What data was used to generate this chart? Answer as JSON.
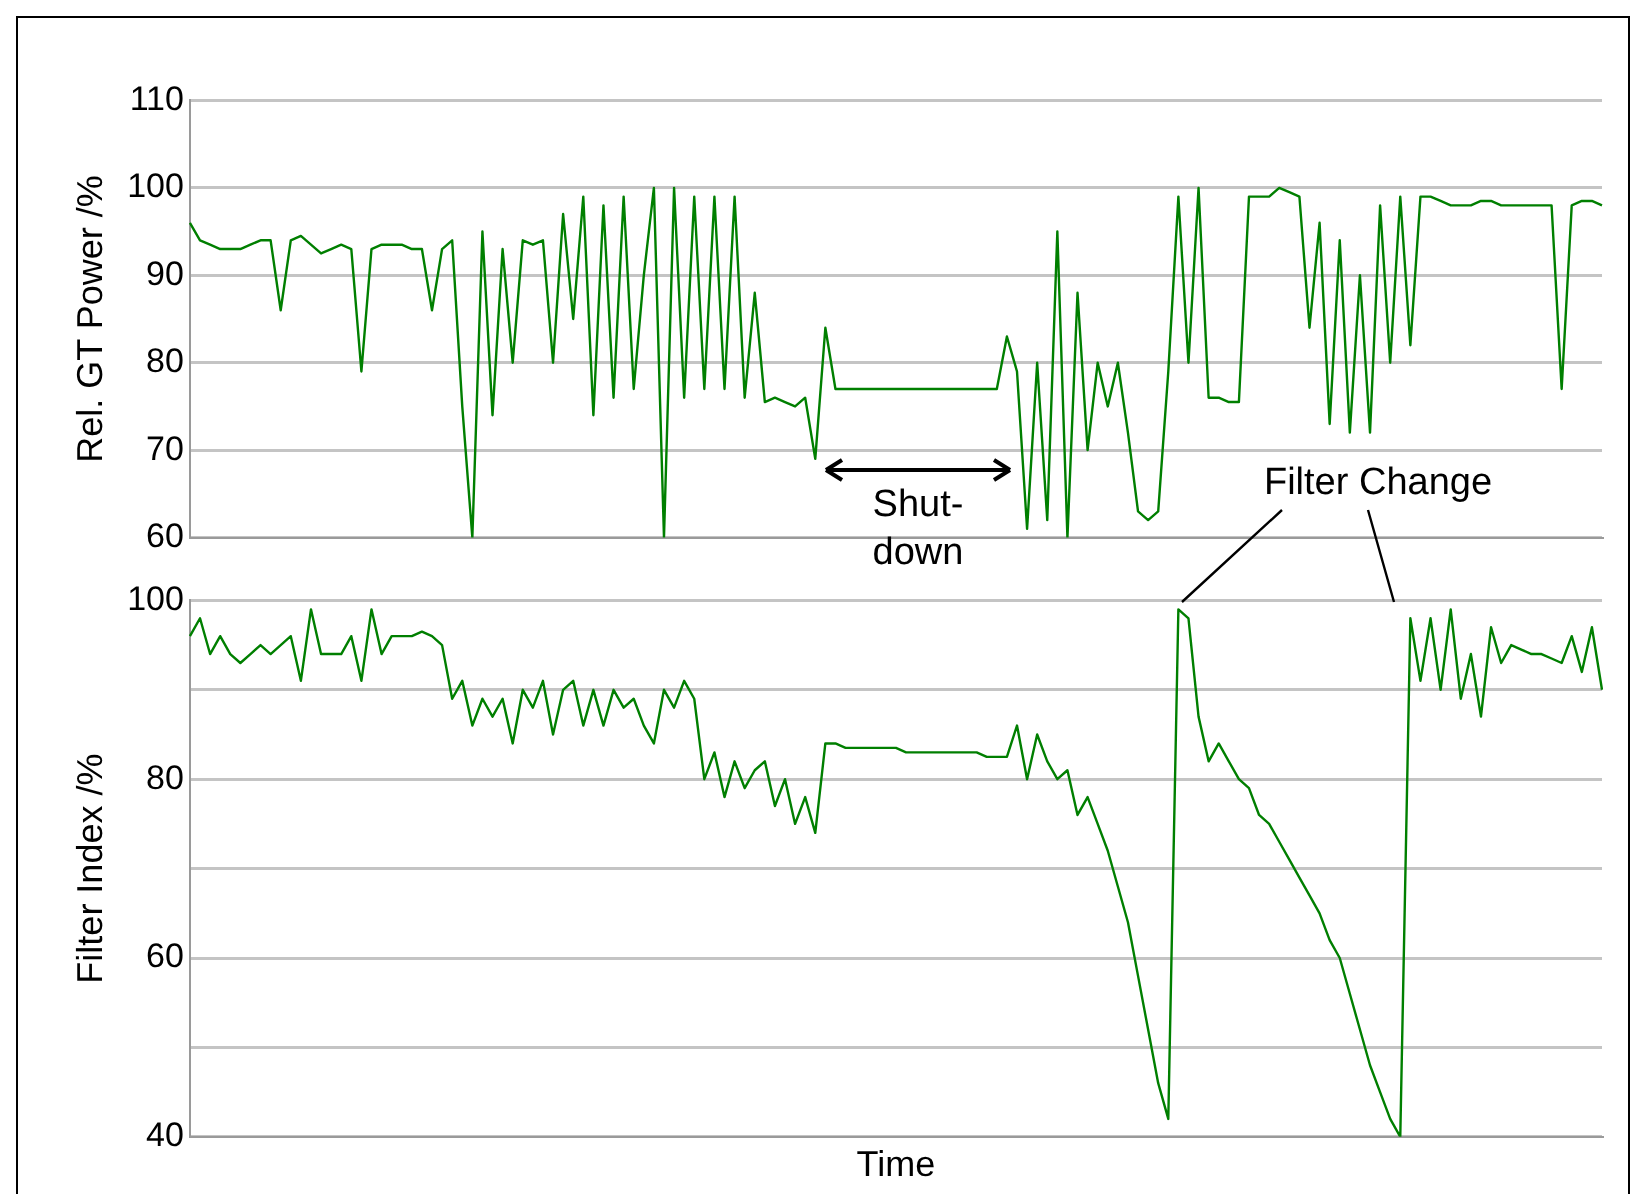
{
  "chart_data": [
    {
      "type": "line",
      "ylabel": "Rel. GT Power /%",
      "categories": [
        null,
        null,
        null,
        null,
        null,
        null,
        null,
        null,
        null,
        null,
        null,
        null,
        null,
        null,
        null,
        null,
        null,
        null,
        null,
        null,
        null,
        null,
        null,
        null,
        null,
        null,
        null,
        null,
        null,
        null,
        null,
        null,
        null,
        null,
        null,
        null,
        null,
        null,
        null,
        null,
        null,
        null,
        null,
        null,
        null,
        null,
        null,
        null,
        null,
        null,
        null,
        null,
        null,
        null,
        null,
        null,
        null,
        null,
        null,
        null,
        null,
        null,
        null,
        null,
        null,
        null,
        null,
        null,
        null,
        null,
        null,
        null,
        null,
        null,
        null,
        null,
        null,
        null,
        null,
        null,
        null,
        null,
        null,
        null,
        null,
        null,
        null,
        null,
        null,
        null,
        null,
        null,
        null,
        null,
        null,
        null,
        null,
        null,
        null,
        null,
        null,
        null,
        null,
        null,
        null,
        null,
        null,
        null,
        null,
        null,
        null,
        null,
        null,
        null,
        null,
        null,
        null,
        null,
        null,
        null,
        null,
        null,
        null,
        null,
        null,
        null,
        null,
        null,
        null,
        null,
        null,
        null,
        null,
        null,
        null,
        null,
        null,
        null,
        null,
        null,
        null
      ],
      "ylim": [
        60,
        110
      ],
      "yticks": [
        60,
        70,
        80,
        90,
        100,
        110
      ],
      "grid": "y",
      "tick_labels": "y",
      "annotations": [
        "Shut-down"
      ],
      "series": [
        {
          "color": "#007f00",
          "values": [
            96,
            94,
            93.5,
            93,
            93,
            93,
            93.5,
            94,
            94,
            86,
            94,
            94.5,
            93.5,
            92.5,
            93,
            93.5,
            93,
            79,
            93,
            93.5,
            93.5,
            93.5,
            93,
            93,
            86,
            93,
            94,
            75,
            60,
            95,
            74,
            93,
            80,
            94,
            93.5,
            94,
            80,
            97,
            85,
            99,
            74,
            98,
            76,
            99,
            77,
            90,
            100,
            60,
            100,
            76,
            99,
            77,
            99,
            77,
            99,
            76,
            88,
            75.5,
            76,
            75.5,
            75,
            76,
            69,
            84,
            77,
            77,
            77,
            77,
            77,
            77,
            77,
            77,
            77,
            77,
            77,
            77,
            77,
            77,
            77,
            77,
            77,
            83,
            79,
            61,
            80,
            62,
            95,
            60,
            88,
            70,
            80,
            75,
            80,
            72,
            63,
            62,
            63,
            79,
            99,
            80,
            100,
            76,
            76,
            75.5,
            75.5,
            99,
            99,
            99,
            100,
            99.5,
            99,
            84,
            96,
            73,
            94,
            72,
            90,
            72,
            98,
            80,
            99,
            82,
            99,
            99,
            98.5,
            98,
            98,
            98,
            98.5,
            98.5,
            98,
            98,
            98,
            98,
            98,
            98,
            77,
            98,
            98.5,
            98.5,
            98
          ]
        }
      ]
    },
    {
      "type": "line",
      "ylabel": "Filter Index /%",
      "xlabel": "Time",
      "categories": [
        null,
        null,
        null,
        null,
        null,
        null,
        null,
        null,
        null,
        null,
        null,
        null,
        null,
        null,
        null,
        null,
        null,
        null,
        null,
        null,
        null,
        null,
        null,
        null,
        null,
        null,
        null,
        null,
        null,
        null,
        null,
        null,
        null,
        null,
        null,
        null,
        null,
        null,
        null,
        null,
        null,
        null,
        null,
        null,
        null,
        null,
        null,
        null,
        null,
        null,
        null,
        null,
        null,
        null,
        null,
        null,
        null,
        null,
        null,
        null,
        null,
        null,
        null,
        null,
        null,
        null,
        null,
        null,
        null,
        null,
        null,
        null,
        null,
        null,
        null,
        null,
        null,
        null,
        null,
        null,
        null,
        null,
        null,
        null,
        null,
        null,
        null,
        null,
        null,
        null,
        null,
        null,
        null,
        null,
        null,
        null,
        null,
        null,
        null,
        null,
        null,
        null,
        null,
        null,
        null,
        null,
        null,
        null,
        null,
        null,
        null,
        null,
        null,
        null,
        null,
        null,
        null,
        null,
        null,
        null,
        null,
        null,
        null,
        null,
        null,
        null,
        null,
        null,
        null,
        null,
        null,
        null,
        null,
        null,
        null,
        null,
        null,
        null,
        null,
        null,
        null
      ],
      "ylim": [
        40,
        100
      ],
      "yticks": [
        40,
        {
          "value": 50,
          "label": null
        },
        60,
        {
          "value": 70,
          "label": null
        },
        80,
        {
          "value": 90,
          "label": null
        },
        100
      ],
      "grid": "y",
      "tick_labels": "y",
      "annotations": [
        "Filter Change"
      ],
      "series": [
        {
          "color": "#007f00",
          "values": [
            96,
            98,
            94,
            96,
            94,
            93,
            94,
            95,
            94,
            95,
            96,
            91,
            99,
            94,
            94,
            94,
            96,
            91,
            99,
            94,
            96,
            96,
            96,
            96.5,
            96,
            95,
            89,
            91,
            86,
            89,
            87,
            89,
            84,
            90,
            88,
            91,
            85,
            90,
            91,
            86,
            90,
            86,
            90,
            88,
            89,
            86,
            84,
            90,
            88,
            91,
            89,
            80,
            83,
            78,
            82,
            79,
            81,
            82,
            77,
            80,
            75,
            78,
            74,
            84,
            84,
            83.5,
            83.5,
            83.5,
            83.5,
            83.5,
            83.5,
            83,
            83,
            83,
            83,
            83,
            83,
            83,
            83,
            82.5,
            82.5,
            82.5,
            86,
            80,
            85,
            82,
            80,
            81,
            76,
            78,
            75,
            72,
            68,
            64,
            58,
            52,
            46,
            42,
            99,
            98,
            87,
            82,
            84,
            82,
            80,
            79,
            76,
            75,
            73,
            71,
            69,
            67,
            65,
            62,
            60,
            56,
            52,
            48,
            45,
            42,
            40,
            98,
            91,
            98,
            90,
            99,
            89,
            94,
            87,
            97,
            93,
            95,
            94.5,
            94,
            94,
            93.5,
            93,
            96,
            92,
            97,
            90
          ]
        }
      ]
    }
  ]
}
